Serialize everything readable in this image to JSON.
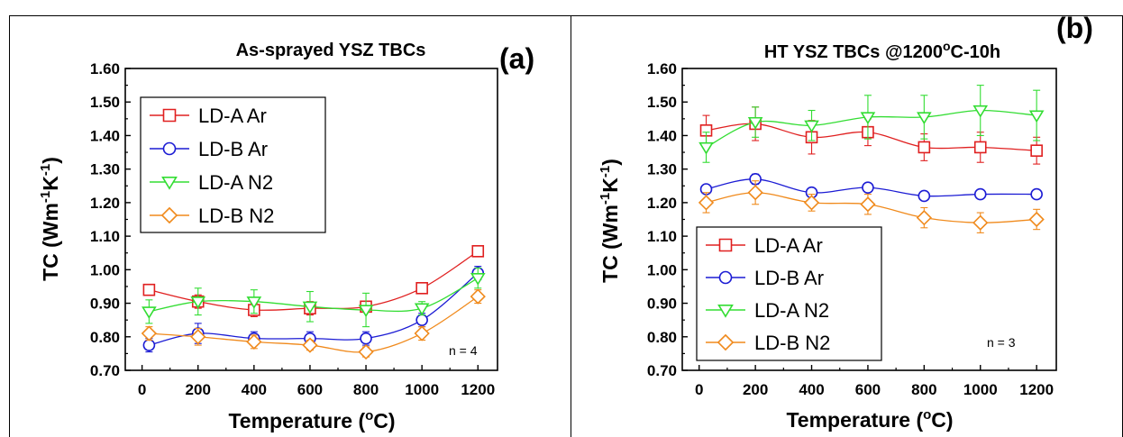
{
  "figure": {
    "panel_a_label": "(a)",
    "panel_b_label": "(b)"
  },
  "chart_data": [
    {
      "type": "line",
      "panel": "(a)",
      "title": "As-sprayed YSZ TBCs",
      "xlabel": "Temperature (",
      "xlabel_sup": "o",
      "xlabel_tail": "C)",
      "ylabel_text": "TC (Wm",
      "ylabel_sup1": "-1",
      "ylabel_mid": "K",
      "ylabel_sup2": "-1",
      "ylabel_tail": ")",
      "note": "n = 4",
      "xlim": [
        -60,
        1270
      ],
      "ylim": [
        0.7,
        1.6
      ],
      "xticks": [
        "0",
        "200",
        "400",
        "600",
        "800",
        "1000",
        "1200"
      ],
      "xtick_values": [
        0,
        200,
        400,
        600,
        800,
        1000,
        1200
      ],
      "yticks": [
        "0.70",
        "0.80",
        "0.90",
        "1.00",
        "1.10",
        "1.20",
        "1.30",
        "1.40",
        "1.50",
        "1.60"
      ],
      "ytick_values": [
        0.7,
        0.8,
        0.9,
        1.0,
        1.1,
        1.2,
        1.3,
        1.4,
        1.5,
        1.6
      ],
      "legend_position": "top-left",
      "series": [
        {
          "name": "LD-A Ar",
          "color": "#e02020",
          "marker": "square",
          "x": [
            25,
            200,
            400,
            600,
            800,
            1000,
            1200
          ],
          "y": [
            0.94,
            0.905,
            0.88,
            0.885,
            0.89,
            0.945,
            1.055
          ],
          "err": [
            0.01,
            0.02,
            0.02,
            0.02,
            0.015,
            0.015,
            0.01
          ]
        },
        {
          "name": "LD-B Ar",
          "color": "#1c1cd4",
          "marker": "circle",
          "x": [
            25,
            200,
            400,
            600,
            800,
            1000,
            1200
          ],
          "y": [
            0.775,
            0.81,
            0.795,
            0.795,
            0.795,
            0.85,
            0.99
          ],
          "err": [
            0.02,
            0.03,
            0.02,
            0.02,
            0.02,
            0.02,
            0.02
          ]
        },
        {
          "name": "LD-A N2",
          "color": "#33dd33",
          "marker": "triangle-down",
          "x": [
            25,
            200,
            400,
            600,
            800,
            1000,
            1200
          ],
          "y": [
            0.875,
            0.905,
            0.905,
            0.89,
            0.88,
            0.885,
            0.975
          ],
          "err": [
            0.035,
            0.04,
            0.035,
            0.045,
            0.05,
            0.02,
            0.03
          ]
        },
        {
          "name": "LD-B N2",
          "color": "#f08a1c",
          "marker": "diamond",
          "x": [
            25,
            200,
            400,
            600,
            800,
            1000,
            1200
          ],
          "y": [
            0.81,
            0.8,
            0.785,
            0.775,
            0.755,
            0.81,
            0.92
          ],
          "err": [
            0.02,
            0.025,
            0.02,
            0.015,
            0.015,
            0.02,
            0.02
          ]
        }
      ]
    },
    {
      "type": "line",
      "panel": "(b)",
      "title": "HT YSZ TBCs @1200",
      "title_sup": "o",
      "title_tail": "C-10h",
      "xlabel": "Temperature (",
      "xlabel_sup": "o",
      "xlabel_tail": "C)",
      "ylabel_text": "TC (Wm",
      "ylabel_sup1": "-1",
      "ylabel_mid": "K",
      "ylabel_sup2": "-1",
      "ylabel_tail": ")",
      "note": "n = 3",
      "xlim": [
        -60,
        1270
      ],
      "ylim": [
        0.7,
        1.6
      ],
      "xticks": [
        "0",
        "200",
        "400",
        "600",
        "800",
        "1000",
        "1200"
      ],
      "xtick_values": [
        0,
        200,
        400,
        600,
        800,
        1000,
        1200
      ],
      "yticks": [
        "0.70",
        "0.80",
        "0.90",
        "1.00",
        "1.10",
        "1.20",
        "1.30",
        "1.40",
        "1.50",
        "1.60"
      ],
      "ytick_values": [
        0.7,
        0.8,
        0.9,
        1.0,
        1.1,
        1.2,
        1.3,
        1.4,
        1.5,
        1.6
      ],
      "legend_position": "bottom-left",
      "series": [
        {
          "name": "LD-A Ar",
          "color": "#e02020",
          "marker": "square",
          "x": [
            25,
            200,
            400,
            600,
            800,
            1000,
            1200
          ],
          "y": [
            1.415,
            1.435,
            1.395,
            1.41,
            1.365,
            1.365,
            1.355
          ],
          "err": [
            0.045,
            0.05,
            0.05,
            0.04,
            0.04,
            0.045,
            0.04
          ]
        },
        {
          "name": "LD-B Ar",
          "color": "#1c1cd4",
          "marker": "circle",
          "x": [
            25,
            200,
            400,
            600,
            800,
            1000,
            1200
          ],
          "y": [
            1.24,
            1.27,
            1.23,
            1.245,
            1.22,
            1.225,
            1.225
          ],
          "err": [
            0.01,
            0.015,
            0.01,
            0.01,
            0.01,
            0.01,
            0.01
          ]
        },
        {
          "name": "LD-A N2",
          "color": "#33dd33",
          "marker": "triangle-down",
          "x": [
            25,
            200,
            400,
            600,
            800,
            1000,
            1200
          ],
          "y": [
            1.365,
            1.44,
            1.43,
            1.455,
            1.455,
            1.475,
            1.46
          ],
          "err": [
            0.045,
            0.045,
            0.045,
            0.065,
            0.065,
            0.075,
            0.075
          ]
        },
        {
          "name": "LD-B N2",
          "color": "#f08a1c",
          "marker": "diamond",
          "x": [
            25,
            200,
            400,
            600,
            800,
            1000,
            1200
          ],
          "y": [
            1.2,
            1.23,
            1.2,
            1.195,
            1.155,
            1.14,
            1.15
          ],
          "err": [
            0.03,
            0.035,
            0.025,
            0.03,
            0.03,
            0.03,
            0.03
          ]
        }
      ]
    }
  ]
}
